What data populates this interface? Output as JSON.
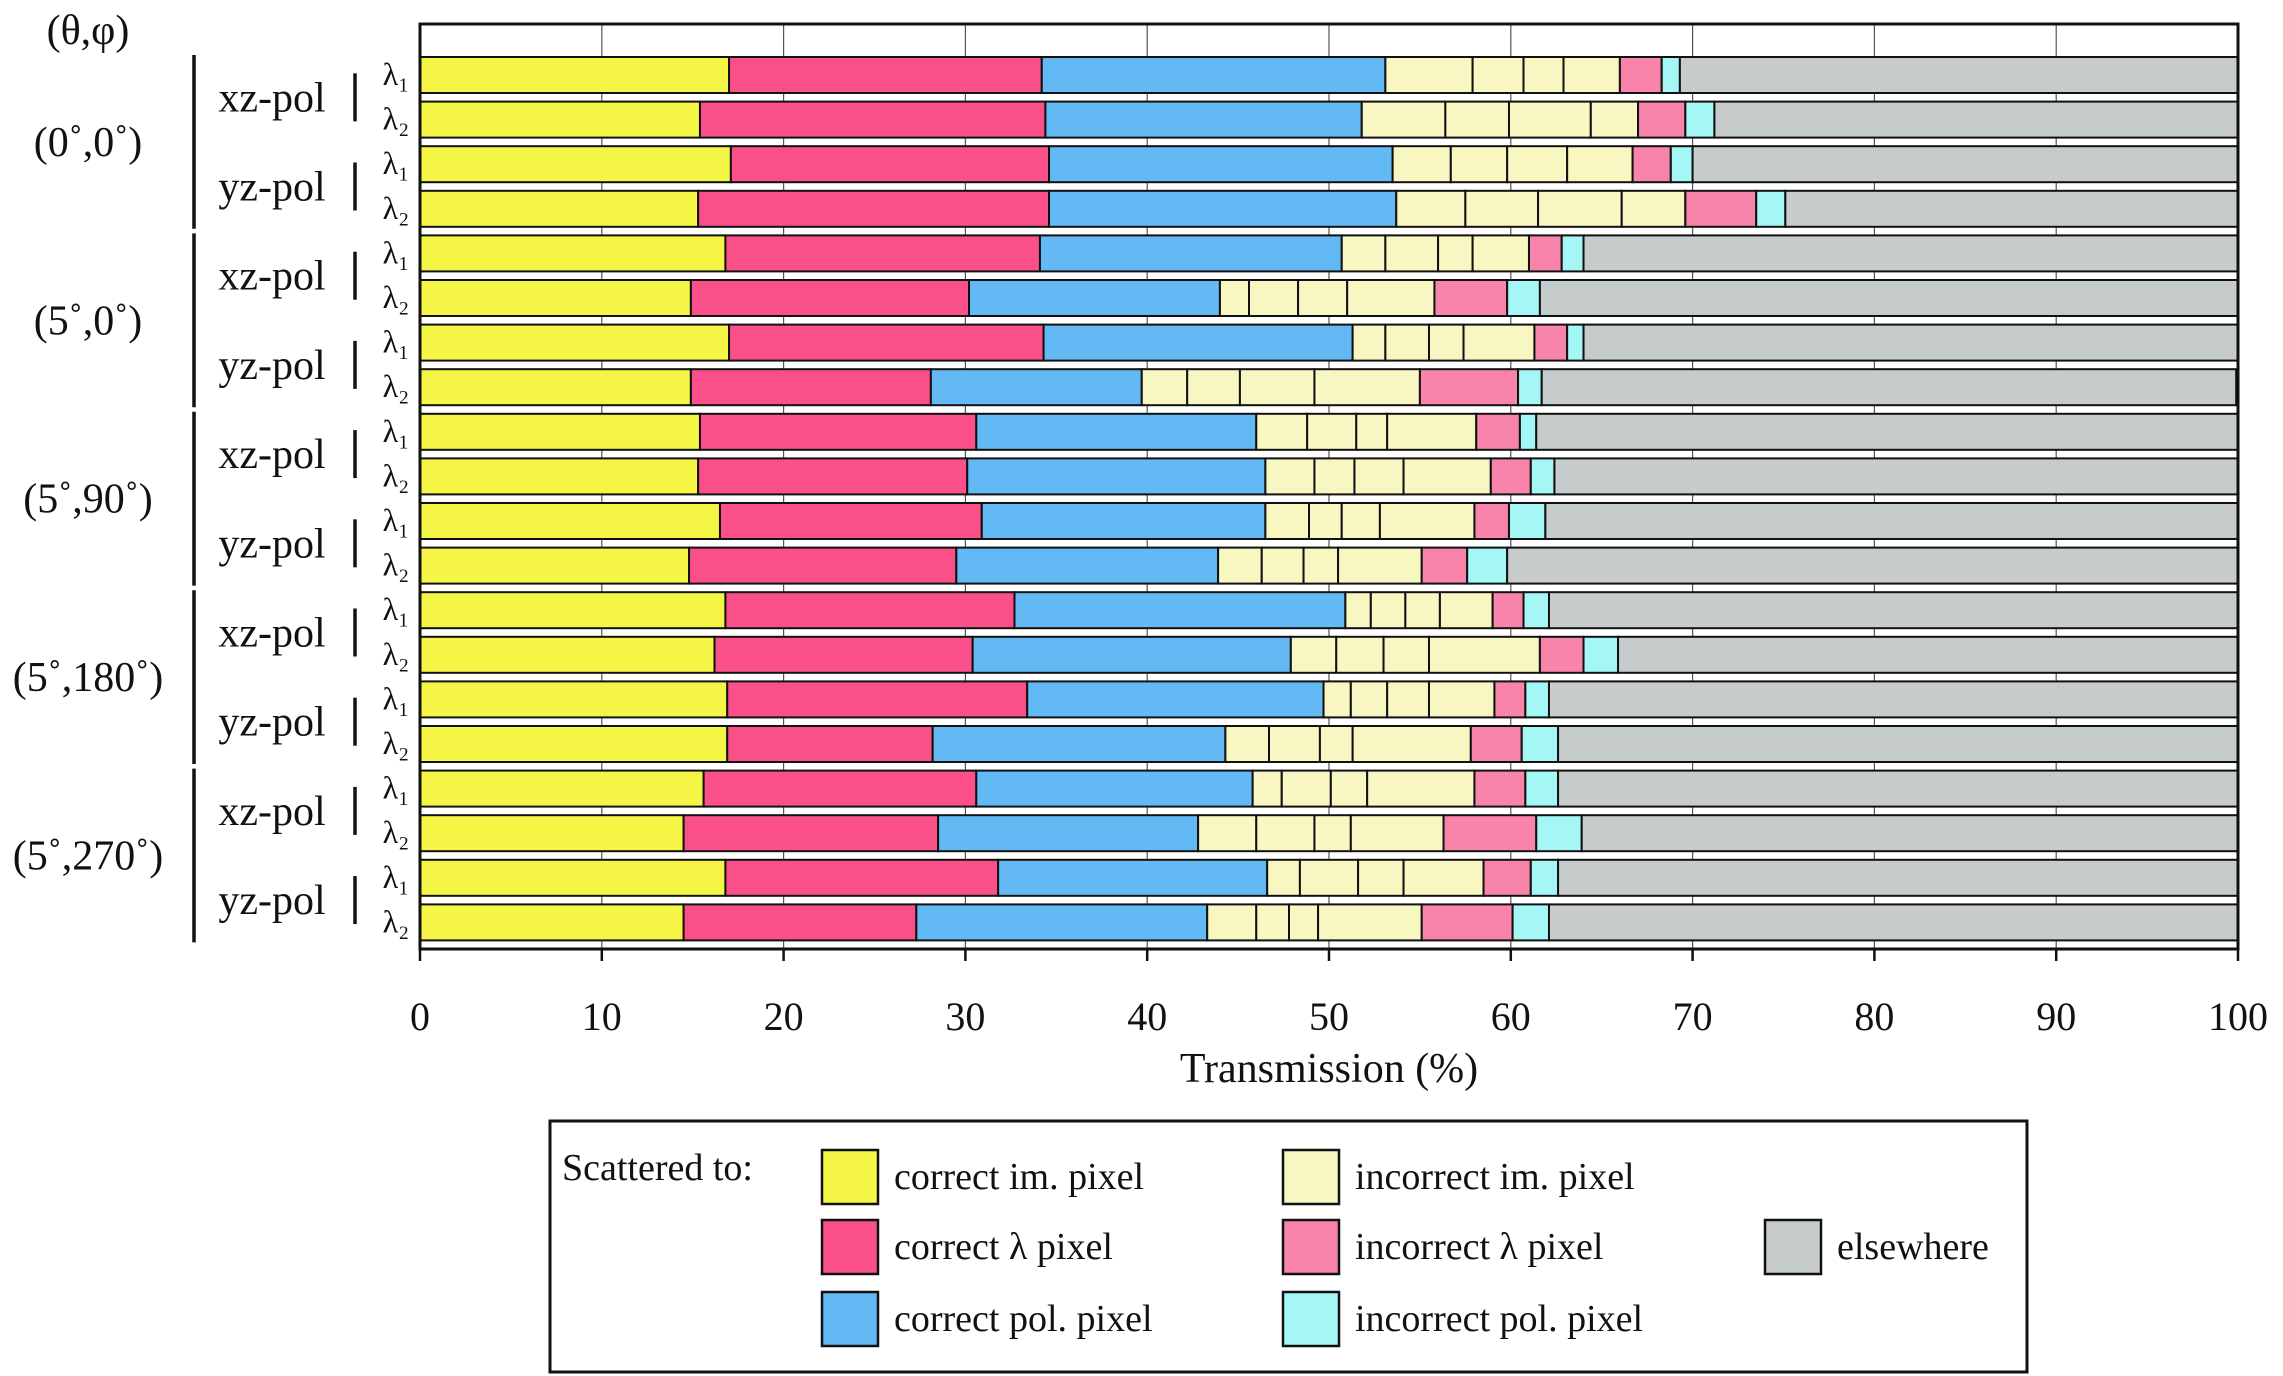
{
  "chart_data": {
    "type": "bar",
    "orientation": "horizontal",
    "stacked": true,
    "title": "",
    "xlabel": "Transmission (%)",
    "ylabel": "",
    "xlim": [
      0,
      100
    ],
    "xticks": [
      0,
      10,
      20,
      30,
      40,
      50,
      60,
      70,
      80,
      90,
      100
    ],
    "grid": true,
    "angle_header": "(θ,φ)",
    "legend": {
      "placement": "bottom",
      "title": "Scattered to:"
    },
    "series": [
      {
        "key": "correct_im",
        "name": "correct im. pixel",
        "color": "#f5f545"
      },
      {
        "key": "correct_lambda",
        "name": "correct λ pixel",
        "color": "#fb4f8a"
      },
      {
        "key": "correct_pol",
        "name": "correct pol. pixel",
        "color": "#63b9f4"
      },
      {
        "key": "incorrect_im",
        "name": "incorrect im. pixel",
        "color": "#f8f7c2"
      },
      {
        "key": "incorrect_lambda",
        "name": "incorrect λ pixel",
        "color": "#f884ab"
      },
      {
        "key": "incorrect_pol",
        "name": "incorrect pol. pixel",
        "color": "#a5f7f6"
      },
      {
        "key": "elsewhere",
        "name": "elsewhere",
        "color": "#c6cbcb"
      }
    ],
    "groups": [
      {
        "angle": "(0˚,0˚)",
        "polarizations": [
          {
            "label": "xz-pol",
            "bars": [
              {
                "wavelength": "λ₁",
                "correct_im": 17.0,
                "correct_lambda": 17.2,
                "correct_pol": 18.9,
                "incorrect_im": [
                  4.8,
                  2.8,
                  2.2,
                  3.1
                ],
                "incorrect_lambda": 2.3,
                "incorrect_pol": 1.0,
                "elsewhere": 30.7
              },
              {
                "wavelength": "λ₂",
                "correct_im": 15.4,
                "correct_lambda": 19.0,
                "correct_pol": 17.4,
                "incorrect_im": [
                  4.6,
                  3.5,
                  4.5,
                  2.6
                ],
                "incorrect_lambda": 2.6,
                "incorrect_pol": 1.6,
                "elsewhere": 28.8
              }
            ]
          },
          {
            "label": "yz-pol",
            "bars": [
              {
                "wavelength": "λ₁",
                "correct_im": 17.1,
                "correct_lambda": 17.5,
                "correct_pol": 18.9,
                "incorrect_im": [
                  3.2,
                  3.1,
                  3.3,
                  3.6
                ],
                "incorrect_lambda": 2.1,
                "incorrect_pol": 1.2,
                "elsewhere": 30.0
              },
              {
                "wavelength": "λ₂",
                "correct_im": 15.3,
                "correct_lambda": 19.3,
                "correct_pol": 19.1,
                "incorrect_im": [
                  3.8,
                  4.0,
                  4.6,
                  3.5
                ],
                "incorrect_lambda": 3.9,
                "incorrect_pol": 1.6,
                "elsewhere": 24.9
              }
            ]
          }
        ]
      },
      {
        "angle": "(5˚,0˚)",
        "polarizations": [
          {
            "label": "xz-pol",
            "bars": [
              {
                "wavelength": "λ₁",
                "correct_im": 16.8,
                "correct_lambda": 17.3,
                "correct_pol": 16.6,
                "incorrect_im": [
                  2.4,
                  2.9,
                  1.9,
                  3.1
                ],
                "incorrect_lambda": 1.8,
                "incorrect_pol": 1.2,
                "elsewhere": 36.0
              },
              {
                "wavelength": "λ₂",
                "correct_im": 14.9,
                "correct_lambda": 15.3,
                "correct_pol": 13.8,
                "incorrect_im": [
                  1.6,
                  2.7,
                  2.7,
                  4.8
                ],
                "incorrect_lambda": 4.0,
                "incorrect_pol": 1.8,
                "elsewhere": 38.4
              }
            ]
          },
          {
            "label": "yz-pol",
            "bars": [
              {
                "wavelength": "λ₁",
                "correct_im": 17.0,
                "correct_lambda": 17.3,
                "correct_pol": 17.0,
                "incorrect_im": [
                  1.8,
                  2.4,
                  1.9,
                  3.9
                ],
                "incorrect_lambda": 1.8,
                "incorrect_pol": 0.9,
                "elsewhere": 36.0
              },
              {
                "wavelength": "λ₂",
                "correct_im": 14.9,
                "correct_lambda": 13.2,
                "correct_pol": 11.6,
                "incorrect_im": [
                  2.5,
                  2.9,
                  4.1,
                  5.8
                ],
                "incorrect_lambda": 5.4,
                "incorrect_pol": 1.3,
                "elsewhere": 38.2
              }
            ]
          }
        ]
      },
      {
        "angle": "(5˚,90˚)",
        "polarizations": [
          {
            "label": "xz-pol",
            "bars": [
              {
                "wavelength": "λ₁",
                "correct_im": 15.4,
                "correct_lambda": 15.2,
                "correct_pol": 15.4,
                "incorrect_im": [
                  2.8,
                  2.7,
                  1.7,
                  4.9
                ],
                "incorrect_lambda": 2.4,
                "incorrect_pol": 0.9,
                "elsewhere": 38.6
              },
              {
                "wavelength": "λ₂",
                "correct_im": 15.3,
                "correct_lambda": 14.8,
                "correct_pol": 16.4,
                "incorrect_im": [
                  2.7,
                  2.2,
                  2.7,
                  4.8
                ],
                "incorrect_lambda": 2.2,
                "incorrect_pol": 1.3,
                "elsewhere": 37.6
              }
            ]
          },
          {
            "label": "yz-pol",
            "bars": [
              {
                "wavelength": "λ₁",
                "correct_im": 16.5,
                "correct_lambda": 14.4,
                "correct_pol": 15.6,
                "incorrect_im": [
                  2.4,
                  1.8,
                  2.1,
                  5.2
                ],
                "incorrect_lambda": 1.9,
                "incorrect_pol": 2.0,
                "elsewhere": 38.1
              },
              {
                "wavelength": "λ₂",
                "correct_im": 14.8,
                "correct_lambda": 14.7,
                "correct_pol": 14.4,
                "incorrect_im": [
                  2.4,
                  2.3,
                  1.9,
                  4.6
                ],
                "incorrect_lambda": 2.5,
                "incorrect_pol": 2.2,
                "elsewhere": 40.2
              }
            ]
          }
        ]
      },
      {
        "angle": "(5˚,180˚)",
        "polarizations": [
          {
            "label": "xz-pol",
            "bars": [
              {
                "wavelength": "λ₁",
                "correct_im": 16.8,
                "correct_lambda": 15.9,
                "correct_pol": 18.2,
                "incorrect_im": [
                  1.4,
                  1.9,
                  1.9,
                  2.9
                ],
                "incorrect_lambda": 1.7,
                "incorrect_pol": 1.4,
                "elsewhere": 37.9
              },
              {
                "wavelength": "λ₂",
                "correct_im": 16.2,
                "correct_lambda": 14.2,
                "correct_pol": 17.5,
                "incorrect_im": [
                  2.5,
                  2.6,
                  2.5,
                  6.1
                ],
                "incorrect_lambda": 2.4,
                "incorrect_pol": 1.9,
                "elsewhere": 34.1
              }
            ]
          },
          {
            "label": "yz-pol",
            "bars": [
              {
                "wavelength": "λ₁",
                "correct_im": 16.9,
                "correct_lambda": 16.5,
                "correct_pol": 16.3,
                "incorrect_im": [
                  1.5,
                  2.0,
                  2.3,
                  3.6
                ],
                "incorrect_lambda": 1.7,
                "incorrect_pol": 1.3,
                "elsewhere": 37.9
              },
              {
                "wavelength": "λ₂",
                "correct_im": 16.9,
                "correct_lambda": 11.3,
                "correct_pol": 16.1,
                "incorrect_im": [
                  2.4,
                  2.8,
                  1.8,
                  6.5
                ],
                "incorrect_lambda": 2.8,
                "incorrect_pol": 2.0,
                "elsewhere": 37.4
              }
            ]
          }
        ]
      },
      {
        "angle": "(5˚,270˚)",
        "polarizations": [
          {
            "label": "xz-pol",
            "bars": [
              {
                "wavelength": "λ₁",
                "correct_im": 15.6,
                "correct_lambda": 15.0,
                "correct_pol": 15.2,
                "incorrect_im": [
                  1.6,
                  2.7,
                  2.0,
                  5.9
                ],
                "incorrect_lambda": 2.8,
                "incorrect_pol": 1.8,
                "elsewhere": 37.4
              },
              {
                "wavelength": "λ₂",
                "correct_im": 14.5,
                "correct_lambda": 14.0,
                "correct_pol": 14.3,
                "incorrect_im": [
                  3.2,
                  3.2,
                  2.0,
                  5.1
                ],
                "incorrect_lambda": 5.1,
                "incorrect_pol": 2.5,
                "elsewhere": 36.1
              }
            ]
          },
          {
            "label": "yz-pol",
            "bars": [
              {
                "wavelength": "λ₁",
                "correct_im": 16.8,
                "correct_lambda": 15.0,
                "correct_pol": 14.8,
                "incorrect_im": [
                  1.8,
                  3.2,
                  2.5,
                  4.4
                ],
                "incorrect_lambda": 2.6,
                "incorrect_pol": 1.5,
                "elsewhere": 37.4
              },
              {
                "wavelength": "λ₂",
                "correct_im": 14.5,
                "correct_lambda": 12.8,
                "correct_pol": 16.0,
                "incorrect_im": [
                  2.7,
                  1.8,
                  1.6,
                  5.7
                ],
                "incorrect_lambda": 5.0,
                "incorrect_pol": 2.0,
                "elsewhere": 37.9
              }
            ]
          }
        ]
      }
    ]
  }
}
